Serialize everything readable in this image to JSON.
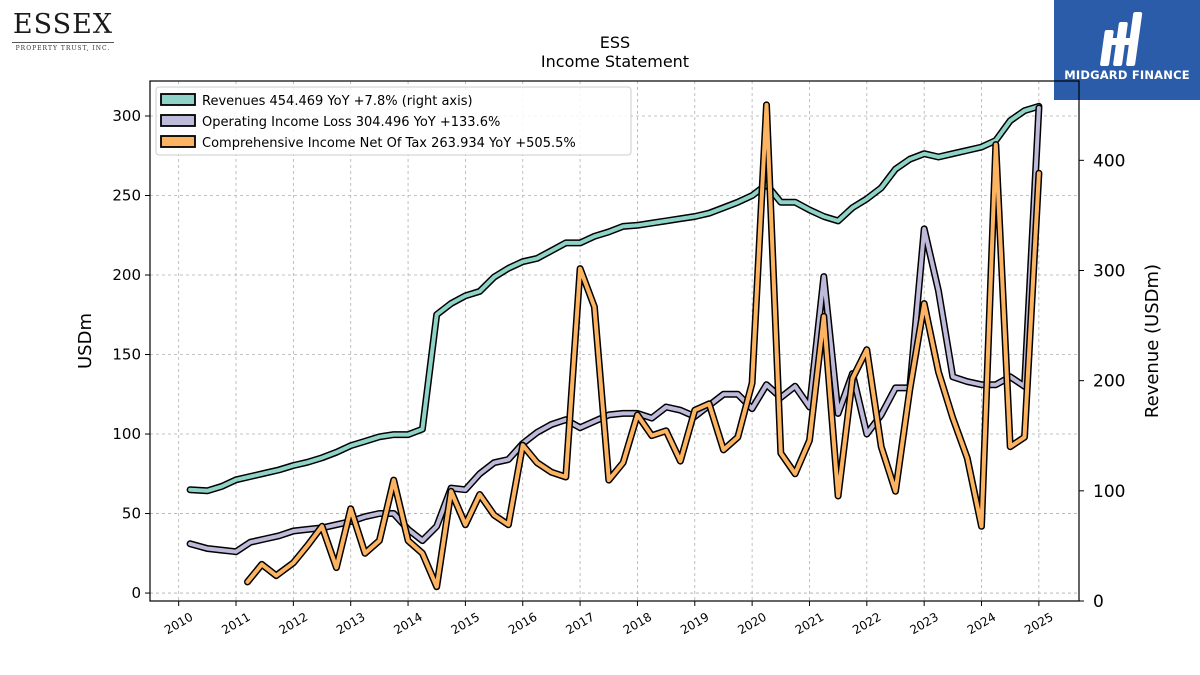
{
  "logos": {
    "left_name": "ESSEX",
    "left_sub": "PROPERTY TRUST, INC.",
    "right_brand": "MIDGARD FINANCE",
    "right_brand_color": "#2a5caa"
  },
  "chart_data": {
    "type": "line",
    "title": "ESS",
    "subtitle": "Income Statement",
    "ylabel": "USDm",
    "ylabel_right": "Revenue (USDm)",
    "ylim": [
      -5,
      322
    ],
    "ylim_right": [
      0,
      472
    ],
    "yticks": [
      0,
      50,
      100,
      150,
      200,
      250,
      300
    ],
    "yticks_right": [
      0,
      100,
      200,
      300,
      400
    ],
    "xlim": [
      2009.5,
      2025.7
    ],
    "xticks": [
      2010,
      2011,
      2012,
      2013,
      2014,
      2015,
      2016,
      2017,
      2018,
      2019,
      2020,
      2021,
      2022,
      2023,
      2024,
      2025
    ],
    "grid": true,
    "legend_position": "top-left",
    "series": [
      {
        "name": "Revenues  454.469 YoY +7.8% (right axis)",
        "axis": "right",
        "color": "#8dd3c7",
        "x": [
          2010.2,
          2010.5,
          2010.75,
          2011.0,
          2011.25,
          2011.5,
          2011.75,
          2012.0,
          2012.25,
          2012.5,
          2012.75,
          2013.0,
          2013.25,
          2013.5,
          2013.75,
          2014.0,
          2014.25,
          2014.5,
          2014.75,
          2015.0,
          2015.25,
          2015.5,
          2015.75,
          2016.0,
          2016.25,
          2016.5,
          2016.75,
          2017.0,
          2017.25,
          2017.5,
          2017.75,
          2018.0,
          2018.25,
          2018.5,
          2018.75,
          2019.0,
          2019.25,
          2019.5,
          2019.75,
          2020.0,
          2020.25,
          2020.5,
          2020.75,
          2021.0,
          2021.25,
          2021.5,
          2021.75,
          2022.0,
          2022.25,
          2022.5,
          2022.75,
          2023.0,
          2023.25,
          2023.5,
          2023.75,
          2024.0,
          2024.25,
          2024.5,
          2024.75,
          2025.0
        ],
        "values": [
          101,
          100,
          104,
          110,
          113,
          116,
          119,
          123,
          126,
          130,
          135,
          141,
          145,
          149,
          151,
          151,
          156,
          260,
          270,
          277,
          281,
          294,
          302,
          308,
          311,
          318,
          325,
          325,
          331,
          335,
          340,
          341,
          343,
          345,
          347,
          349,
          352,
          357,
          362,
          368,
          378,
          362,
          362,
          355,
          349,
          345,
          357,
          365,
          375,
          392,
          401,
          406,
          403,
          406,
          409,
          412,
          418,
          436,
          445,
          449
        ]
      },
      {
        "name": "Operating Income Loss  304.496 YoY +133.6%",
        "axis": "left",
        "color": "#bebada",
        "x": [
          2010.2,
          2010.5,
          2010.75,
          2011.0,
          2011.25,
          2011.5,
          2011.75,
          2012.0,
          2012.25,
          2012.5,
          2012.75,
          2013.0,
          2013.25,
          2013.5,
          2013.75,
          2014.0,
          2014.25,
          2014.5,
          2014.75,
          2015.0,
          2015.25,
          2015.5,
          2015.75,
          2016.0,
          2016.25,
          2016.5,
          2016.75,
          2017.0,
          2017.25,
          2017.5,
          2017.75,
          2018.0,
          2018.25,
          2018.5,
          2018.75,
          2019.0,
          2019.25,
          2019.5,
          2019.75,
          2020.0,
          2020.25,
          2020.5,
          2020.75,
          2021.0,
          2021.25,
          2021.5,
          2021.75,
          2022.0,
          2022.25,
          2022.5,
          2022.75,
          2023.0,
          2023.25,
          2023.5,
          2023.75,
          2024.0,
          2024.25,
          2024.5,
          2024.75,
          2025.0
        ],
        "values": [
          31,
          28,
          27,
          26,
          32,
          34,
          36,
          39,
          40,
          41,
          43,
          45,
          48,
          50,
          50,
          40,
          33,
          42,
          66,
          65,
          75,
          82,
          84,
          94,
          101,
          106,
          109,
          104,
          108,
          112,
          113,
          113,
          110,
          117,
          115,
          111,
          118,
          125,
          125,
          116,
          131,
          123,
          130,
          117,
          199,
          113,
          138,
          100,
          112,
          129,
          129,
          229,
          190,
          136,
          133,
          131,
          131,
          136,
          130,
          305
        ]
      },
      {
        "name": "Comprehensive Income Net Of Tax  263.934 YoY +505.5%",
        "axis": "left",
        "color": "#fdb462",
        "x": [
          2011.2,
          2011.45,
          2011.7,
          2012.0,
          2012.25,
          2012.5,
          2012.75,
          2013.0,
          2013.25,
          2013.5,
          2013.75,
          2014.0,
          2014.25,
          2014.5,
          2014.75,
          2015.0,
          2015.25,
          2015.5,
          2015.75,
          2016.0,
          2016.25,
          2016.5,
          2016.75,
          2017.0,
          2017.25,
          2017.5,
          2017.75,
          2018.0,
          2018.25,
          2018.5,
          2018.75,
          2019.0,
          2019.25,
          2019.5,
          2019.75,
          2020.0,
          2020.25,
          2020.5,
          2020.75,
          2021.0,
          2021.25,
          2021.5,
          2021.75,
          2022.0,
          2022.25,
          2022.5,
          2022.75,
          2023.0,
          2023.25,
          2023.5,
          2023.75,
          2024.0,
          2024.25,
          2024.5,
          2024.75,
          2025.0
        ],
        "values": [
          7,
          18,
          11,
          19,
          30,
          42,
          16,
          53,
          25,
          33,
          71,
          33,
          25,
          4,
          64,
          43,
          62,
          49,
          43,
          93,
          82,
          76,
          73,
          204,
          180,
          71,
          82,
          112,
          99,
          102,
          83,
          115,
          119,
          90,
          98,
          132,
          307,
          88,
          75,
          96,
          174,
          61,
          135,
          153,
          92,
          64,
          128,
          182,
          139,
          110,
          85,
          42,
          282,
          92,
          98,
          264
        ]
      }
    ]
  }
}
